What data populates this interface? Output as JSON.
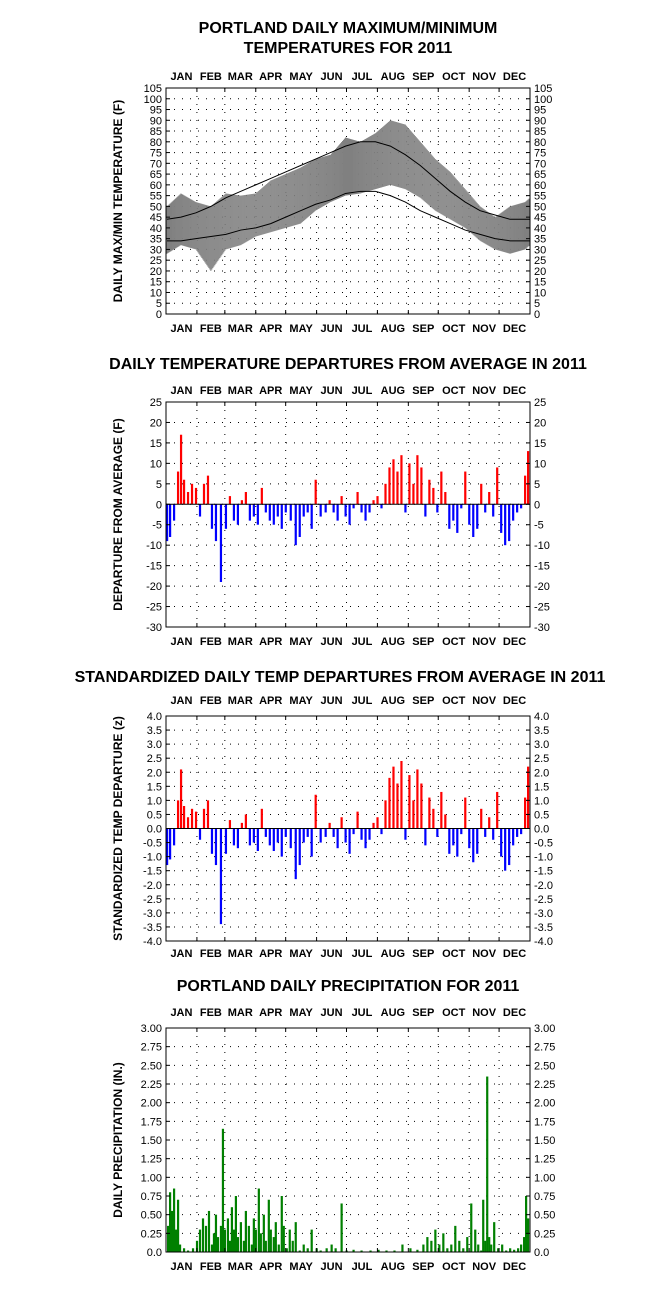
{
  "chart_data": [
    {
      "id": "maxmin",
      "type": "area",
      "title_lines": [
        "PORTLAND DAILY MAXIMUM/MINIMUM",
        "TEMPERATURES FOR 2011"
      ],
      "ylabel": "DAILY MAX/MIN TEMPERATURE (F)",
      "months": [
        "JAN",
        "FEB",
        "MAR",
        "APR",
        "MAY",
        "JUN",
        "JUL",
        "AUG",
        "SEP",
        "OCT",
        "NOV",
        "DEC"
      ],
      "ylim": [
        0,
        105
      ],
      "yticks": [
        0,
        5,
        10,
        15,
        20,
        25,
        30,
        35,
        40,
        45,
        50,
        55,
        60,
        65,
        70,
        75,
        80,
        85,
        90,
        95,
        100,
        105
      ],
      "ytick_labels": [
        "0",
        "5",
        "10",
        "15",
        "20",
        "25",
        "30",
        "35",
        "40",
        "45",
        "50",
        "55",
        "60",
        "65",
        "70",
        "75",
        "80",
        "85",
        "90",
        "95",
        "100",
        "105"
      ],
      "grid": true,
      "series": [
        {
          "role": "observed_range_max",
          "color": "#808080",
          "x": [
            1,
            15,
            30,
            45,
            60,
            75,
            90,
            105,
            120,
            135,
            150,
            165,
            180,
            195,
            210,
            225,
            240,
            255,
            270,
            285,
            300,
            315,
            330,
            345,
            360,
            365
          ],
          "values": [
            50,
            56,
            52,
            50,
            56,
            55,
            56,
            62,
            65,
            68,
            72,
            74,
            82,
            80,
            84,
            90,
            88,
            80,
            72,
            66,
            58,
            50,
            45,
            50,
            52,
            54
          ]
        },
        {
          "role": "observed_range_min",
          "color": "#808080",
          "x": [
            1,
            15,
            30,
            45,
            60,
            75,
            90,
            105,
            120,
            135,
            150,
            165,
            180,
            195,
            210,
            225,
            240,
            255,
            270,
            285,
            300,
            315,
            330,
            345,
            360,
            365
          ],
          "values": [
            28,
            32,
            30,
            20,
            30,
            32,
            36,
            38,
            40,
            42,
            48,
            52,
            55,
            56,
            58,
            60,
            58,
            54,
            48,
            44,
            40,
            34,
            30,
            28,
            30,
            32
          ]
        },
        {
          "role": "normal_max",
          "color": "#000000",
          "x": [
            1,
            15,
            30,
            45,
            60,
            75,
            90,
            105,
            120,
            135,
            150,
            165,
            180,
            195,
            210,
            225,
            240,
            255,
            270,
            285,
            300,
            315,
            330,
            345,
            360,
            365
          ],
          "values": [
            44,
            45,
            47,
            50,
            54,
            57,
            60,
            63,
            66,
            69,
            72,
            75,
            78,
            80,
            80,
            78,
            74,
            69,
            63,
            57,
            52,
            48,
            46,
            44,
            44,
            44
          ]
        },
        {
          "role": "normal_min",
          "color": "#000000",
          "x": [
            1,
            15,
            30,
            45,
            60,
            75,
            90,
            105,
            120,
            135,
            150,
            165,
            180,
            195,
            210,
            225,
            240,
            255,
            270,
            285,
            300,
            315,
            330,
            345,
            360,
            365
          ],
          "values": [
            34,
            34,
            35,
            36,
            37,
            39,
            40,
            42,
            45,
            48,
            51,
            53,
            56,
            57,
            57,
            55,
            52,
            48,
            45,
            42,
            39,
            37,
            35,
            34,
            34,
            34
          ]
        }
      ]
    },
    {
      "id": "departure",
      "type": "bar",
      "title": "DAILY TEMPERATURE DEPARTURES FROM AVERAGE IN 2011",
      "ylabel": "DEPARTURE FROM AVERAGE (F)",
      "months": [
        "JAN",
        "FEB",
        "MAR",
        "APR",
        "MAY",
        "JUN",
        "JUL",
        "AUG",
        "SEP",
        "OCT",
        "NOV",
        "DEC"
      ],
      "ylim": [
        -30,
        25
      ],
      "yticks": [
        -30,
        -25,
        -20,
        -15,
        -10,
        -5,
        0,
        5,
        10,
        15,
        20,
        25
      ],
      "ytick_labels": [
        "-30",
        "-25",
        "-20",
        "-15",
        "-10",
        "-5",
        "0",
        "5",
        "10",
        "15",
        "20",
        "25"
      ],
      "grid": true,
      "positive_color": "#ff0000",
      "negative_color": "#0000ff",
      "x": [
        1,
        4,
        8,
        12,
        15,
        18,
        22,
        26,
        30,
        34,
        38,
        42,
        46,
        50,
        55,
        60,
        64,
        68,
        72,
        76,
        80,
        84,
        88,
        92,
        96,
        100,
        104,
        108,
        112,
        116,
        120,
        125,
        130,
        134,
        138,
        142,
        146,
        150,
        155,
        160,
        164,
        168,
        172,
        176,
        180,
        184,
        188,
        192,
        196,
        200,
        204,
        208,
        212,
        216,
        220,
        224,
        228,
        232,
        236,
        240,
        244,
        248,
        252,
        256,
        260,
        264,
        268,
        272,
        276,
        280,
        284,
        288,
        292,
        296,
        300,
        304,
        308,
        312,
        316,
        320,
        324,
        328,
        332,
        336,
        340,
        344,
        348,
        352,
        356,
        360,
        363
      ],
      "values": [
        -9,
        -8,
        -4,
        8,
        17,
        6,
        3,
        5,
        4,
        -3,
        5,
        7,
        -6,
        -9,
        -19,
        -6,
        2,
        -4,
        -5,
        1,
        3,
        -4,
        -3,
        -5,
        4,
        -2,
        -4,
        -5,
        -3,
        -6,
        -2,
        -4,
        -10,
        -8,
        -3,
        -2,
        -6,
        6,
        -3,
        -2,
        1,
        -2,
        -4,
        2,
        -3,
        -5,
        -1,
        3,
        -2,
        -4,
        -2,
        1,
        2,
        -1,
        5,
        9,
        11,
        8,
        12,
        -2,
        10,
        5,
        12,
        9,
        -3,
        6,
        4,
        -2,
        8,
        3,
        -6,
        -4,
        -7,
        -1,
        8,
        -5,
        -8,
        -6,
        5,
        -2,
        3,
        -3,
        9,
        -7,
        -10,
        -9,
        -4,
        -2,
        -1,
        7,
        13
      ]
    },
    {
      "id": "standardized",
      "type": "bar",
      "title": "STANDARDIZED DAILY TEMP DEPARTURES FROM AVERAGE IN 2011",
      "ylabel": "STANDARDIZED TEMP DEPARTURE (z)",
      "months": [
        "JAN",
        "FEB",
        "MAR",
        "APR",
        "MAY",
        "JUN",
        "JUL",
        "AUG",
        "SEP",
        "OCT",
        "NOV",
        "DEC"
      ],
      "ylim": [
        -4.0,
        4.0
      ],
      "yticks": [
        -4,
        -3.5,
        -3,
        -2.5,
        -2,
        -1.5,
        -1,
        -0.5,
        0,
        0.5,
        1,
        1.5,
        2,
        2.5,
        3,
        3.5,
        4
      ],
      "ytick_labels": [
        "-4.0",
        "-3.5",
        "-3.0",
        "-2.5",
        "-2.0",
        "-1.5",
        "-1.0",
        "-0.5",
        "0.0",
        "0.5",
        "1.0",
        "1.5",
        "2.0",
        "2.5",
        "3.0",
        "3.5",
        "4.0"
      ],
      "grid": true,
      "positive_color": "#ff0000",
      "negative_color": "#0000ff",
      "x": [
        1,
        4,
        8,
        12,
        15,
        18,
        22,
        26,
        30,
        34,
        38,
        42,
        46,
        50,
        55,
        60,
        64,
        68,
        72,
        76,
        80,
        84,
        88,
        92,
        96,
        100,
        104,
        108,
        112,
        116,
        120,
        125,
        130,
        134,
        138,
        142,
        146,
        150,
        155,
        160,
        164,
        168,
        172,
        176,
        180,
        184,
        188,
        192,
        196,
        200,
        204,
        208,
        212,
        216,
        220,
        224,
        228,
        232,
        236,
        240,
        244,
        248,
        252,
        256,
        260,
        264,
        268,
        272,
        276,
        280,
        284,
        288,
        292,
        296,
        300,
        304,
        308,
        312,
        316,
        320,
        324,
        328,
        332,
        336,
        340,
        344,
        348,
        352,
        356,
        360,
        363
      ],
      "values": [
        -1.3,
        -1.1,
        -0.6,
        1.0,
        2.1,
        0.8,
        0.4,
        0.7,
        0.6,
        -0.4,
        0.7,
        1.0,
        -0.9,
        -1.3,
        -3.4,
        -0.9,
        0.3,
        -0.6,
        -0.7,
        0.2,
        0.5,
        -0.6,
        -0.5,
        -0.8,
        0.7,
        -0.3,
        -0.6,
        -0.8,
        -0.5,
        -1.0,
        -0.3,
        -0.7,
        -1.8,
        -1.3,
        -0.5,
        -0.3,
        -1.0,
        1.2,
        -0.5,
        -0.3,
        0.2,
        -0.3,
        -0.7,
        0.4,
        -0.5,
        -0.9,
        -0.2,
        0.6,
        -0.4,
        -0.7,
        -0.4,
        0.2,
        0.4,
        -0.2,
        1.0,
        1.8,
        2.2,
        1.6,
        2.4,
        -0.4,
        1.9,
        1.0,
        2.1,
        1.6,
        -0.6,
        1.1,
        0.7,
        -0.3,
        1.3,
        0.5,
        -0.9,
        -0.6,
        -1.0,
        -0.2,
        1.1,
        -0.7,
        -1.2,
        -0.9,
        0.7,
        -0.3,
        0.4,
        -0.4,
        1.3,
        -1.0,
        -1.5,
        -1.3,
        -0.6,
        -0.3,
        -0.2,
        1.1,
        2.2
      ]
    },
    {
      "id": "precip",
      "type": "bar",
      "title": "PORTLAND DAILY PRECIPITATION FOR 2011",
      "ylabel": "DAILY PRECIPITATION (IN.)",
      "months": [
        "JAN",
        "FEB",
        "MAR",
        "APR",
        "MAY",
        "JUN",
        "JUL",
        "AUG",
        "SEP",
        "OCT",
        "NOV",
        "DEC"
      ],
      "ylim": [
        0,
        3.0
      ],
      "yticks": [
        0,
        0.25,
        0.5,
        0.75,
        1,
        1.25,
        1.5,
        1.75,
        2,
        2.25,
        2.5,
        2.75,
        3
      ],
      "ytick_labels": [
        "0.0",
        "0.25",
        "0.50",
        "0.75",
        "1.00",
        "1.25",
        "1.50",
        "1.75",
        "2.00",
        "2.25",
        "2.50",
        "2.75",
        "3.00"
      ],
      "grid": true,
      "bar_color": "#008000",
      "x": [
        2,
        4,
        6,
        8,
        10,
        12,
        14,
        18,
        22,
        27,
        31,
        34,
        37,
        40,
        43,
        46,
        48,
        50,
        52,
        55,
        57,
        59,
        62,
        64,
        66,
        68,
        70,
        72,
        75,
        78,
        80,
        83,
        86,
        88,
        90,
        93,
        95,
        98,
        100,
        103,
        105,
        108,
        110,
        113,
        116,
        118,
        121,
        124,
        127,
        130,
        134,
        138,
        142,
        146,
        151,
        155,
        161,
        166,
        170,
        176,
        181,
        188,
        196,
        205,
        213,
        221,
        229,
        237,
        245,
        252,
        258,
        262,
        266,
        270,
        274,
        278,
        282,
        286,
        290,
        294,
        298,
        302,
        306,
        310,
        313,
        316,
        318,
        320,
        322,
        324,
        326,
        329,
        333,
        337,
        341,
        345,
        349,
        353,
        356,
        359,
        361,
        363
      ],
      "values": [
        0.35,
        0.8,
        0.55,
        0.85,
        0.3,
        0.7,
        0.1,
        0.05,
        0.02,
        0.05,
        0.15,
        0.3,
        0.45,
        0.35,
        0.55,
        0.1,
        0.25,
        0.5,
        0.2,
        0.35,
        1.65,
        0.3,
        0.45,
        0.15,
        0.6,
        0.3,
        0.75,
        0.2,
        0.4,
        0.15,
        0.55,
        0.35,
        0.1,
        0.45,
        0.3,
        0.85,
        0.25,
        0.5,
        0.15,
        0.7,
        0.3,
        0.2,
        0.4,
        0.1,
        0.75,
        0.35,
        0.05,
        0.3,
        0.15,
        0.4,
        0.02,
        0.1,
        0.05,
        0.3,
        0.05,
        0.02,
        0.05,
        0.1,
        0.05,
        0.65,
        0.02,
        0.03,
        0.02,
        0.02,
        0.03,
        0.02,
        0.02,
        0.1,
        0.05,
        0.03,
        0.1,
        0.2,
        0.15,
        0.3,
        0.1,
        0.25,
        0.05,
        0.1,
        0.35,
        0.15,
        0.05,
        0.2,
        0.65,
        0.3,
        0.1,
        0.02,
        0.7,
        0.15,
        2.35,
        0.2,
        0.1,
        0.4,
        0.05,
        0.1,
        0.02,
        0.05,
        0.03,
        0.05,
        0.1,
        0.2,
        0.75,
        0.45
      ]
    }
  ]
}
